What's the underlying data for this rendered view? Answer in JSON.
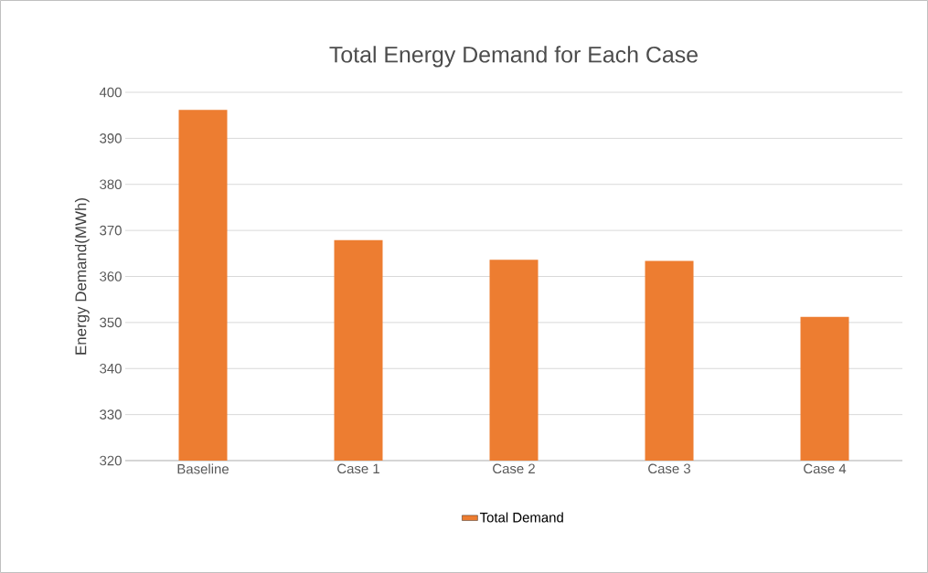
{
  "chart_data": {
    "type": "bar",
    "title": "Total Energy Demand for Each Case",
    "ylabel": "Energy Demand(MWh)",
    "categories": [
      "Baseline",
      "Case 1",
      "Case 2",
      "Case 3",
      "Case 4"
    ],
    "series": [
      {
        "name": "Total Demand",
        "color": "#ed7d31",
        "values": [
          396.2,
          367.9,
          363.6,
          363.4,
          351.2
        ]
      }
    ],
    "ylim": [
      320,
      400
    ],
    "yticks": [
      320,
      330,
      340,
      350,
      360,
      370,
      380,
      390,
      400
    ],
    "grid": "y",
    "legend": "bottom"
  }
}
